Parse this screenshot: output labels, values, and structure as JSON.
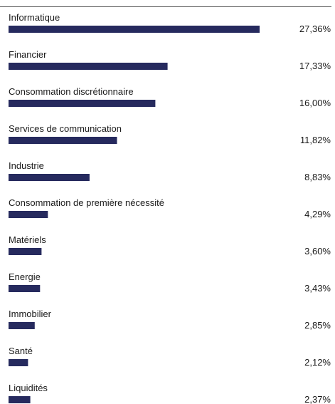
{
  "chart_data": {
    "type": "bar",
    "orientation": "horizontal",
    "categories": [
      "Informatique",
      "Financier",
      "Consommation discrétionnaire",
      "Services de communication",
      "Industrie",
      "Consommation de première nécessité",
      "Matériels",
      "Energie",
      "Immobilier",
      "Santé",
      "Liquidités"
    ],
    "values": [
      27.36,
      17.33,
      16.0,
      11.82,
      8.83,
      4.29,
      3.6,
      3.43,
      2.85,
      2.12,
      2.37
    ],
    "value_labels": [
      "27,36%",
      "17,33%",
      "16,00%",
      "11,82%",
      "8,83%",
      "4,29%",
      "3,60%",
      "3,43%",
      "2,85%",
      "2,12%",
      "2,37%"
    ],
    "bar_color": "#262a5e",
    "text_color": "#1a1a1a",
    "grid": false,
    "legend": "none"
  }
}
